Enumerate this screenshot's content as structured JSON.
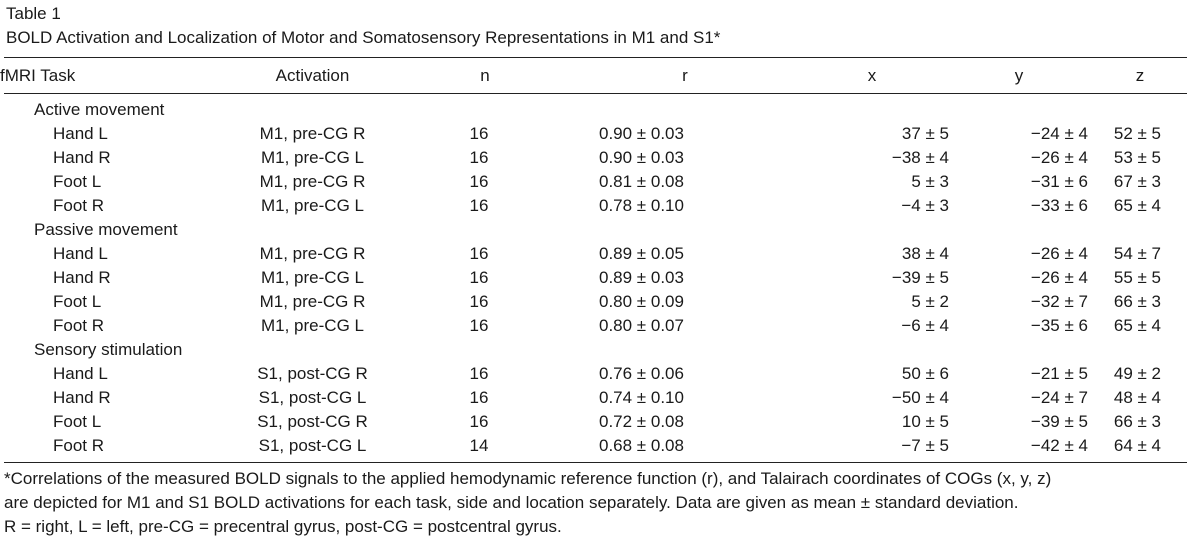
{
  "caption": {
    "label": "Table 1",
    "title": "BOLD Activation and Localization of Motor and Somatosensory Representations in M1 and S1*"
  },
  "headers": {
    "task": "fMRI Task",
    "activation": "Activation",
    "n": "n",
    "r": "r",
    "x": "x",
    "y": "y",
    "z": "z"
  },
  "groups": [
    {
      "name": "Active movement",
      "rows": [
        {
          "task": "Hand L",
          "activation": "M1, pre-CG R",
          "n": "16",
          "r": "0.90 ± 0.03",
          "x": "37 ± 5",
          "y": "−24 ± 4",
          "z": "52 ± 5"
        },
        {
          "task": "Hand R",
          "activation": "M1, pre-CG L",
          "n": "16",
          "r": "0.90 ± 0.03",
          "x": "−38 ± 4",
          "y": "−26 ± 4",
          "z": "53 ± 5"
        },
        {
          "task": "Foot L",
          "activation": "M1, pre-CG R",
          "n": "16",
          "r": "0.81 ± 0.08",
          "x": "5 ± 3",
          "y": "−31 ± 6",
          "z": "67 ± 3"
        },
        {
          "task": "Foot R",
          "activation": "M1, pre-CG L",
          "n": "16",
          "r": "0.78 ± 0.10",
          "x": "−4 ± 3",
          "y": "−33 ± 6",
          "z": "65 ± 4"
        }
      ]
    },
    {
      "name": "Passive movement",
      "rows": [
        {
          "task": "Hand L",
          "activation": "M1, pre-CG R",
          "n": "16",
          "r": "0.89 ± 0.05",
          "x": "38 ± 4",
          "y": "−26 ± 4",
          "z": "54 ± 7"
        },
        {
          "task": "Hand R",
          "activation": "M1, pre-CG L",
          "n": "16",
          "r": "0.89 ± 0.03",
          "x": "−39 ± 5",
          "y": "−26 ± 4",
          "z": "55 ± 5"
        },
        {
          "task": "Foot L",
          "activation": "M1, pre-CG R",
          "n": "16",
          "r": "0.80 ± 0.09",
          "x": "5 ± 2",
          "y": "−32 ± 7",
          "z": "66 ± 3"
        },
        {
          "task": "Foot R",
          "activation": "M1, pre-CG L",
          "n": "16",
          "r": "0.80 ± 0.07",
          "x": "−6 ± 4",
          "y": "−35 ± 6",
          "z": "65 ± 4"
        }
      ]
    },
    {
      "name": "Sensory stimulation",
      "rows": [
        {
          "task": "Hand L",
          "activation": "S1, post-CG R",
          "n": "16",
          "r": "0.76 ± 0.06",
          "x": "50 ± 6",
          "y": "−21 ± 5",
          "z": "49 ± 2"
        },
        {
          "task": "Hand R",
          "activation": "S1, post-CG L",
          "n": "16",
          "r": "0.74 ± 0.10",
          "x": "−50 ± 4",
          "y": "−24 ± 7",
          "z": "48 ± 4"
        },
        {
          "task": "Foot L",
          "activation": "S1, post-CG R",
          "n": "16",
          "r": "0.72 ± 0.08",
          "x": "10 ± 5",
          "y": "−39 ± 5",
          "z": "66 ± 3"
        },
        {
          "task": "Foot R",
          "activation": "S1, post-CG L",
          "n": "14",
          "r": "0.68 ± 0.08",
          "x": "−7 ± 5",
          "y": "−42 ± 4",
          "z": "64 ± 4"
        }
      ]
    }
  ],
  "footnote": {
    "line1": "*Correlations of the measured BOLD signals to the applied hemodynamic reference function (r), and Talairach coordinates of COGs (x, y, z)",
    "line2": "are depicted for M1 and S1 BOLD activations for each task, side and location separately. Data are given as mean ± standard deviation.",
    "line3": "R = right, L = left, pre-CG = precentral gyrus, post-CG = postcentral gyrus."
  }
}
